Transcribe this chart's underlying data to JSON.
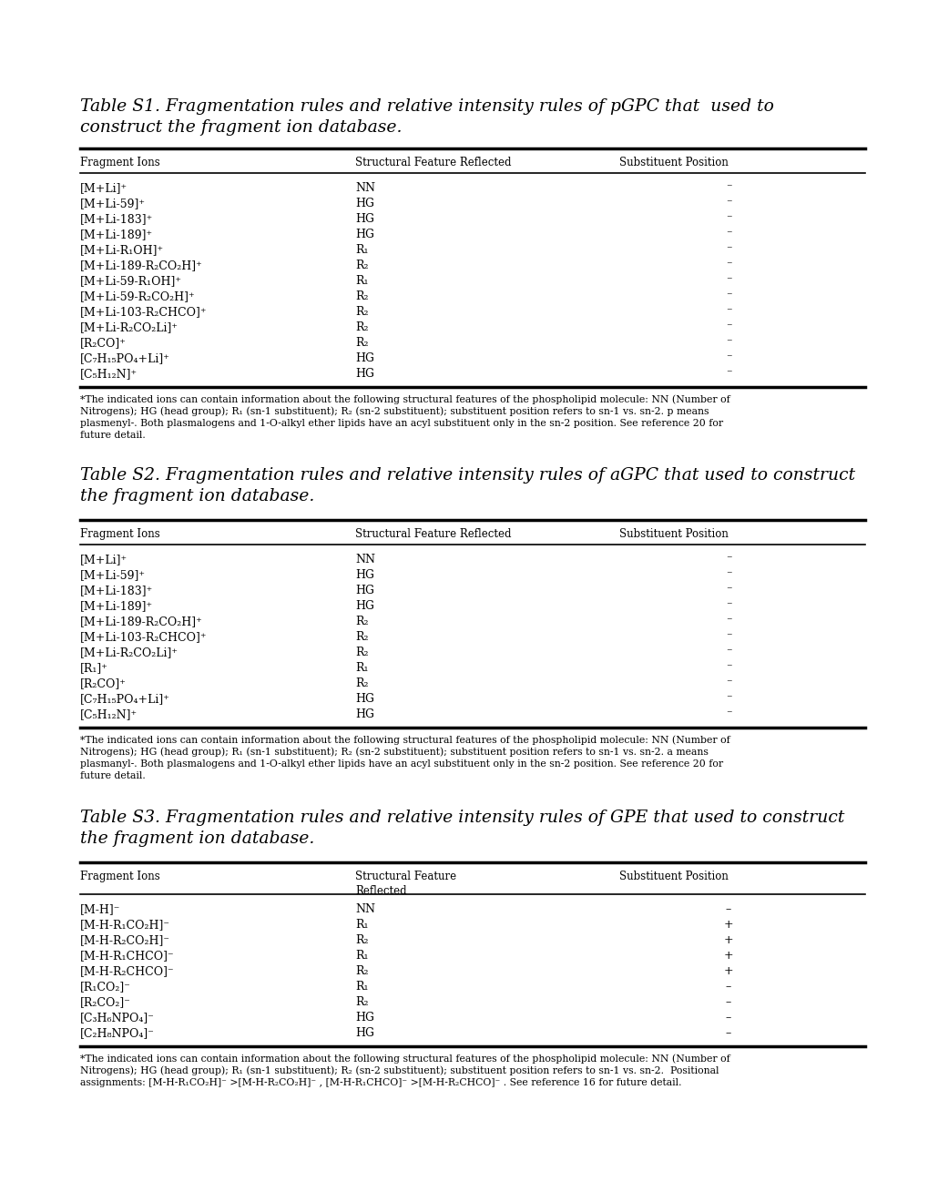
{
  "title1": "Table S1. Fragmentation rules and relative intensity rules of pGPC that  used to\nconstruct the fragment ion database.",
  "title2": "Table S2. Fragmentation rules and relative intensity rules of aGPC that used to construct\nthe fragment ion database.",
  "title3": "Table S3. Fragmentation rules and relative intensity rules of GPE that used to construct\nthe fragment ion database.",
  "table1_headers": [
    "Fragment Ions",
    "Structural Feature Reflected",
    "Substituent Position"
  ],
  "table1_rows": [
    [
      "[M+Li]+",
      "NN",
      "-"
    ],
    [
      "[M+Li-59]+",
      "HG",
      "-"
    ],
    [
      "[M+Li-183]+",
      "HG",
      "-"
    ],
    [
      "[M+Li-189]+",
      "HG",
      "-"
    ],
    [
      "[M+Li-R1OH]+",
      "R1",
      "-"
    ],
    [
      "[M+Li-189-R2CO2H]+",
      "R2",
      "-"
    ],
    [
      "[M+Li-59-R1OH]+",
      "R1",
      "-"
    ],
    [
      "[M+Li-59-R2CO2H]+",
      "R2",
      "-"
    ],
    [
      "[M+Li-103-R2CHCO]+",
      "R2",
      "-"
    ],
    [
      "[M+Li-R2CO2Li]+",
      "R2",
      "-"
    ],
    [
      "[R2CO]+",
      "R2",
      "-"
    ],
    [
      "[C7H15PO4+Li]+",
      "HG",
      "-"
    ],
    [
      "[C5H12N]+",
      "HG",
      "-"
    ]
  ],
  "table1_rows_col1": [
    "[M+Li]⁺",
    "[M+Li-59]⁺",
    "[M+Li-183]⁺",
    "[M+Li-189]⁺",
    "[M+Li-R₁OH]⁺",
    "[M+Li-189-R₂CO₂H]⁺",
    "[M+Li-59-R₁OH]⁺",
    "[M+Li-59-R₂CO₂H]⁺",
    "[M+Li-103-R₂CHCO]⁺",
    "[M+Li-R₂CO₂Li]⁺",
    "[R₂CO]⁺",
    "[C₇H₁₅PO₄+Li]⁺",
    "[C₅H₁₂N]⁺"
  ],
  "table1_rows_col2": [
    "NN",
    "HG",
    "HG",
    "HG",
    "R₁",
    "R₂",
    "R₁",
    "R₂",
    "R₂",
    "R₂",
    "R₂",
    "HG",
    "HG"
  ],
  "table1_rows_col3": [
    "⁻",
    "⁻",
    "⁻",
    "⁻",
    "⁻",
    "⁻",
    "⁻",
    "⁻",
    "⁻",
    "⁻",
    "⁻",
    "⁻",
    "⁻"
  ],
  "table1_footnote": "*The indicated ions can contain information about the following structural features of the phospholipid molecule: NN (Number of\nNitrogens); HG (head group); R₁ (sn-1 substituent); R₂ (sn-2 substituent); substituent position refers to sn-1 vs. sn-2. p means\nplasmenyl-. Both plasmalogens and 1-O-alkyl ether lipids have an acyl substituent only in the sn-2 position. See reference 20 for\nfuture detail.",
  "table2_headers": [
    "Fragment Ions",
    "Structural Feature Reflected",
    "Substituent Position"
  ],
  "table2_rows_col1": [
    "[M+Li]⁺",
    "[M+Li-59]⁺",
    "[M+Li-183]⁺",
    "[M+Li-189]⁺",
    "[M+Li-189-R₂CO₂H]⁺",
    "[M+Li-103-R₂CHCO]⁺",
    "[M+Li-R₂CO₂Li]⁺",
    "[R₁]⁺",
    "[R₂CO]⁺",
    "[C₇H₁₅PO₄+Li]⁺",
    "[C₅H₁₂N]⁺"
  ],
  "table2_rows_col2": [
    "NN",
    "HG",
    "HG",
    "HG",
    "R₂",
    "R₂",
    "R₂",
    "R₁",
    "R₂",
    "HG",
    "HG"
  ],
  "table2_rows_col3": [
    "⁻",
    "⁻",
    "⁻",
    "⁻",
    "⁻",
    "⁻",
    "⁻",
    "⁻",
    "⁻",
    "⁻",
    "⁻"
  ],
  "table2_footnote": "*The indicated ions can contain information about the following structural features of the phospholipid molecule: NN (Number of\nNitrogens); HG (head group); R₁ (sn-1 substituent); R₂ (sn-2 substituent); substituent position refers to sn-1 vs. sn-2. a means\nplasmanyl-. Both plasmalogens and 1-O-alkyl ether lipids have an acyl substituent only in the sn-2 position. See reference 20 for\nfuture detail.",
  "table3_headers": [
    "Fragment Ions",
    "Structural Feature\nReflected",
    "Substituent Position"
  ],
  "table3_rows_col1": [
    "[M-H]⁻",
    "[M-H-R₁CO₂H]⁻",
    "[M-H-R₂CO₂H]⁻",
    "[M-H-R₁CHCO]⁻",
    "[M-H-R₂CHCO]⁻",
    "[R₁CO₂]⁻",
    "[R₂CO₂]⁻",
    "[C₃H₆NPO₄]⁻",
    "[C₂H₈NPO₄]⁻"
  ],
  "table3_rows_col2": [
    "NN",
    "R₁",
    "R₂",
    "R₁",
    "R₂",
    "R₁",
    "R₂",
    "HG",
    "HG"
  ],
  "table3_rows_col3": [
    "–",
    "+",
    "+",
    "+",
    "+",
    "–",
    "–",
    "–",
    "–"
  ],
  "table3_footnote": "*The indicated ions can contain information about the following structural features of the phospholipid molecule: NN (Number of\nNitrogens); HG (head group); R₁ (sn-1 substituent); R₂ (sn-2 substituent); substituent position refers to sn-1 vs. sn-2.  Positional\nassignments: [M-H-R₁CO₂H]⁻ >[M-H-R₂CO₂H]⁻ , [M-H-R₁CHCO]⁻ >[M-H-R₂CHCO]⁻ . See reference 16 for future detail.",
  "bg_color": "#ffffff"
}
